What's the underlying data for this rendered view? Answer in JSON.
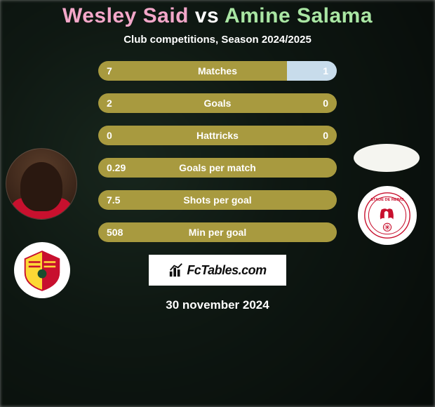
{
  "title_player1_color": "#f3a7c9",
  "title_vs_color": "#ffffff",
  "title_player2_color": "#a9e6a3",
  "player1": "Wesley Said",
  "vs": "vs",
  "player2": "Amine Salama",
  "subtitle": "Club competitions, Season 2024/2025",
  "subtitle_color": "#ffffff",
  "row_text_color": "#ffffff",
  "brand_text": "FcTables.com",
  "date": "30 november 2024",
  "date_color": "#ffffff",
  "colors": {
    "bar_main": "#a89a3f",
    "bar_accent1": "#c8dceb",
    "bar_accent2": "#5a8a6a"
  },
  "rows": [
    {
      "label": "Matches",
      "left": "7",
      "right": "1",
      "left_pct": 79,
      "right_is_accent": true,
      "accent": "accent1"
    },
    {
      "label": "Goals",
      "left": "2",
      "right": "0",
      "left_pct": 100,
      "right_is_accent": false
    },
    {
      "label": "Hattricks",
      "left": "0",
      "right": "0",
      "left_pct": 100,
      "right_is_accent": false
    },
    {
      "label": "Goals per match",
      "left": "0.29",
      "right": "",
      "left_pct": 100,
      "right_is_accent": false
    },
    {
      "label": "Shots per goal",
      "left": "7.5",
      "right": "",
      "left_pct": 100,
      "right_is_accent": false
    },
    {
      "label": "Min per goal",
      "left": "508",
      "right": "",
      "left_pct": 100,
      "right_is_accent": false
    }
  ],
  "club_left_name": "racing-club-de-lens-crest",
  "club_right_name": "stade-de-reims-crest"
}
